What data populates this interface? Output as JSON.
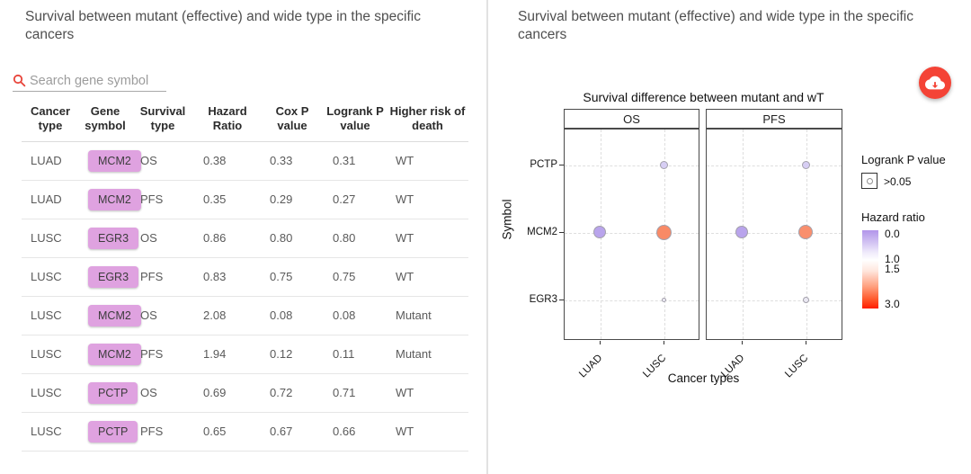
{
  "left_panel": {
    "title": "Survival between mutant (effective) and wide type in the specific cancers",
    "search": {
      "placeholder": "Search gene symbol",
      "icon": "magnifier",
      "icon_color": "#e8443a"
    },
    "table": {
      "headers": [
        "Cancer type",
        "Gene symbol",
        "Survival type",
        "Hazard Ratio",
        "Cox P value",
        "Logrank P value",
        "Higher risk of death"
      ],
      "rows": [
        {
          "cancer_type": "LUAD",
          "gene_symbol": "MCM2",
          "survival_type": "OS",
          "hazard_ratio": "0.38",
          "cox_p": "0.33",
          "logrank_p": "0.31",
          "higher_risk": "WT"
        },
        {
          "cancer_type": "LUAD",
          "gene_symbol": "MCM2",
          "survival_type": "PFS",
          "hazard_ratio": "0.35",
          "cox_p": "0.29",
          "logrank_p": "0.27",
          "higher_risk": "WT"
        },
        {
          "cancer_type": "LUSC",
          "gene_symbol": "EGR3",
          "survival_type": "OS",
          "hazard_ratio": "0.86",
          "cox_p": "0.80",
          "logrank_p": "0.80",
          "higher_risk": "WT"
        },
        {
          "cancer_type": "LUSC",
          "gene_symbol": "EGR3",
          "survival_type": "PFS",
          "hazard_ratio": "0.83",
          "cox_p": "0.75",
          "logrank_p": "0.75",
          "higher_risk": "WT"
        },
        {
          "cancer_type": "LUSC",
          "gene_symbol": "MCM2",
          "survival_type": "OS",
          "hazard_ratio": "2.08",
          "cox_p": "0.08",
          "logrank_p": "0.08",
          "higher_risk": "Mutant"
        },
        {
          "cancer_type": "LUSC",
          "gene_symbol": "MCM2",
          "survival_type": "PFS",
          "hazard_ratio": "1.94",
          "cox_p": "0.12",
          "logrank_p": "0.11",
          "higher_risk": "Mutant"
        },
        {
          "cancer_type": "LUSC",
          "gene_symbol": "PCTP",
          "survival_type": "OS",
          "hazard_ratio": "0.69",
          "cox_p": "0.72",
          "logrank_p": "0.71",
          "higher_risk": "WT"
        },
        {
          "cancer_type": "LUSC",
          "gene_symbol": "PCTP",
          "survival_type": "PFS",
          "hazard_ratio": "0.65",
          "cox_p": "0.67",
          "logrank_p": "0.66",
          "higher_risk": "WT"
        }
      ],
      "gene_badge_color": "#dfa2e0"
    }
  },
  "right_panel": {
    "title": "Survival between mutant (effective) and wide type in the specific cancers",
    "download_icon": "cloud-download",
    "download_button_color": "#f44336"
  },
  "chart_data": {
    "type": "scatter",
    "title": "Survival difference between mutant and wT",
    "facets": [
      "OS",
      "PFS"
    ],
    "x_categories": [
      "LUAD",
      "LUSC"
    ],
    "y_categories": [
      "PCTP",
      "MCM2",
      "EGR3"
    ],
    "xlabel": "Cancer types",
    "ylabel": "Symbol",
    "grid": "dashed",
    "legend": {
      "logrank_title": "Logrank P value",
      "logrank_key_label": ">0.05",
      "hazard_title": "Hazard ratio",
      "hazard_ticks": [
        "0.0",
        "1.0",
        "1.5",
        "3.0"
      ],
      "gradient_colors": {
        "low": "#b295ea",
        "mid": "#ffffff",
        "high": "#ff1e00"
      }
    },
    "points": [
      {
        "facet": "OS",
        "x": "LUAD",
        "y": "MCM2",
        "hazard_ratio": 0.38,
        "logrank_p": 0.31,
        "size": 14,
        "color": "#b9a4ec"
      },
      {
        "facet": "OS",
        "x": "LUSC",
        "y": "MCM2",
        "hazard_ratio": 2.08,
        "logrank_p": 0.08,
        "size": 17,
        "color": "#f98a66"
      },
      {
        "facet": "OS",
        "x": "LUSC",
        "y": "PCTP",
        "hazard_ratio": 0.69,
        "logrank_p": 0.71,
        "size": 9,
        "color": "#d7cef4"
      },
      {
        "facet": "OS",
        "x": "LUSC",
        "y": "EGR3",
        "hazard_ratio": 0.86,
        "logrank_p": 0.8,
        "size": 5,
        "color": "#efedf7"
      },
      {
        "facet": "PFS",
        "x": "LUAD",
        "y": "MCM2",
        "hazard_ratio": 0.35,
        "logrank_p": 0.27,
        "size": 14,
        "color": "#b9a4ec"
      },
      {
        "facet": "PFS",
        "x": "LUSC",
        "y": "MCM2",
        "hazard_ratio": 1.94,
        "logrank_p": 0.11,
        "size": 16,
        "color": "#f98f6e"
      },
      {
        "facet": "PFS",
        "x": "LUSC",
        "y": "PCTP",
        "hazard_ratio": 0.65,
        "logrank_p": 0.66,
        "size": 9,
        "color": "#d7cef4"
      },
      {
        "facet": "PFS",
        "x": "LUSC",
        "y": "EGR3",
        "hazard_ratio": 0.83,
        "logrank_p": 0.75,
        "size": 7,
        "color": "#ebe9f3"
      }
    ]
  }
}
